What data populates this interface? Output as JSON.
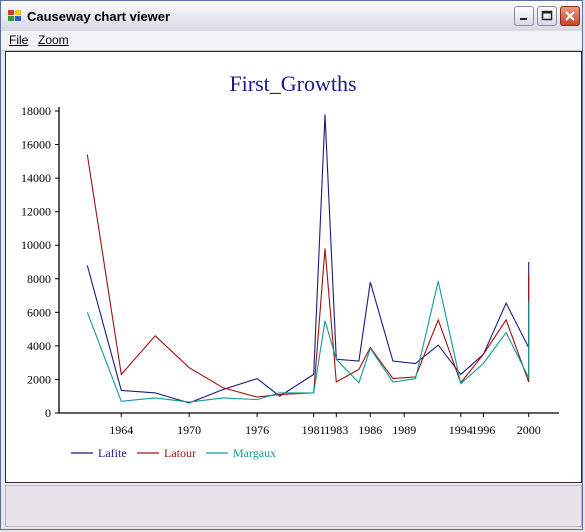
{
  "window": {
    "title": "Causeway chart viewer",
    "menu": [
      {
        "label": "File"
      },
      {
        "label": "Zoom"
      }
    ]
  },
  "colors": {
    "title_text": "#1b1b8a",
    "Lafite": "#1a1a80",
    "Latour": "#a01010",
    "Margaux": "#109a9a"
  },
  "chart_data": {
    "type": "line",
    "title": "First_Growths",
    "xlabel": "",
    "ylabel": "",
    "ylim": [
      0,
      18000
    ],
    "yticks": [
      0,
      2000,
      4000,
      6000,
      8000,
      10000,
      12000,
      14000,
      16000,
      18000
    ],
    "xlim": [
      1958.5,
      2002.5
    ],
    "xticks": [
      1964,
      1970,
      1976,
      1981,
      1983,
      1986,
      1989,
      1994,
      1996,
      2000
    ],
    "grid": false,
    "legend_position": "bottom-left",
    "series": [
      {
        "name": "Lafite",
        "color": "#1a1a80",
        "x": [
          1961,
          1964,
          1967,
          1970,
          1973,
          1976,
          1978,
          1981,
          1982,
          1983,
          1985,
          1986,
          1988,
          1990,
          1992,
          1994,
          1996,
          1998,
          2000,
          2000
        ],
        "y": [
          8800,
          1350,
          1200,
          600,
          1400,
          2050,
          1000,
          2300,
          17800,
          3200,
          3100,
          7800,
          3100,
          2950,
          4050,
          2300,
          3500,
          6550,
          3900,
          9000
        ]
      },
      {
        "name": "Latour",
        "color": "#a01010",
        "x": [
          1961,
          1964,
          1967,
          1970,
          1973,
          1976,
          1978,
          1981,
          1982,
          1983,
          1985,
          1986,
          1988,
          1990,
          1992,
          1994,
          1996,
          1998,
          2000,
          2000
        ],
        "y": [
          15400,
          2300,
          4600,
          2700,
          1500,
          950,
          1100,
          1200,
          9800,
          1850,
          2600,
          3900,
          2050,
          2150,
          5550,
          1800,
          3500,
          5550,
          1850,
          8300
        ]
      },
      {
        "name": "Margaux",
        "color": "#109a9a",
        "x": [
          1961,
          1964,
          1967,
          1970,
          1973,
          1976,
          1978,
          1981,
          1982,
          1983,
          1985,
          1986,
          1988,
          1990,
          1992,
          1994,
          1996,
          1998,
          2000,
          2000
        ],
        "y": [
          6000,
          700,
          900,
          650,
          900,
          800,
          1200,
          1200,
          5500,
          3200,
          1800,
          3850,
          1850,
          2050,
          7850,
          1750,
          2950,
          4800,
          2100,
          6650
        ]
      }
    ]
  }
}
